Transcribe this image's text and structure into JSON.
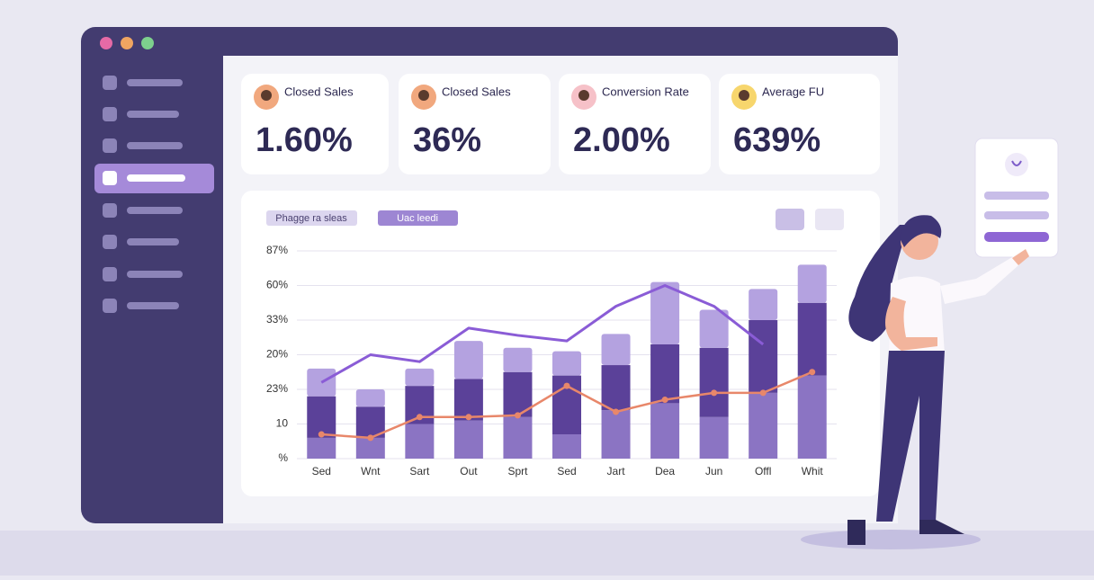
{
  "kpis": [
    {
      "label": "Closed Sales",
      "value": "1.60%"
    },
    {
      "label": "Closed Sales",
      "value": "36%"
    },
    {
      "label": "Conversion Rate",
      "value": "2.00%"
    },
    {
      "label": "Average FU",
      "value": "639%"
    }
  ],
  "chart_data": {
    "type": "bar",
    "legend_labels": [
      "Phagge ra sleas",
      "Uac leedi"
    ],
    "categories": [
      "Sed",
      "Wnt",
      "Sart",
      "Out",
      "Sprt",
      "Sed",
      "Jart",
      "Dea",
      "Jun",
      "Offl",
      "Whit"
    ],
    "series": [
      {
        "color": "#8b74c3",
        "values": [
          6,
          6,
          10,
          11,
          12,
          7,
          14,
          16,
          12,
          19,
          24
        ]
      },
      {
        "color": "#5b4199",
        "values": [
          12,
          9,
          11,
          12,
          13,
          17,
          13,
          17,
          20,
          21,
          21
        ]
      },
      {
        "color": "#b4a2e0",
        "values": [
          8,
          5,
          5,
          11,
          7,
          7,
          9,
          18,
          11,
          9,
          11
        ]
      }
    ],
    "lines": [
      {
        "color": "#8a5cd6",
        "values": [
          22,
          30,
          28,
          37.7,
          35.6,
          34,
          44,
          50,
          44,
          33,
          null
        ]
      },
      {
        "color": "#e8876a",
        "values": [
          7,
          6,
          12,
          12,
          12.5,
          21,
          13.5,
          17,
          19,
          19,
          25
        ]
      }
    ],
    "ylim": [
      0,
      60
    ],
    "yticks": [
      {
        "value": 0,
        "label": "%"
      },
      10,
      {
        "value": 20,
        "label": "23%"
      },
      {
        "value": 30,
        "label": "20%"
      },
      {
        "value": 40,
        "label": "33%"
      },
      {
        "value": 50,
        "label": "60%"
      },
      {
        "value": 60,
        "label": "87%"
      }
    ],
    "grid": true
  }
}
